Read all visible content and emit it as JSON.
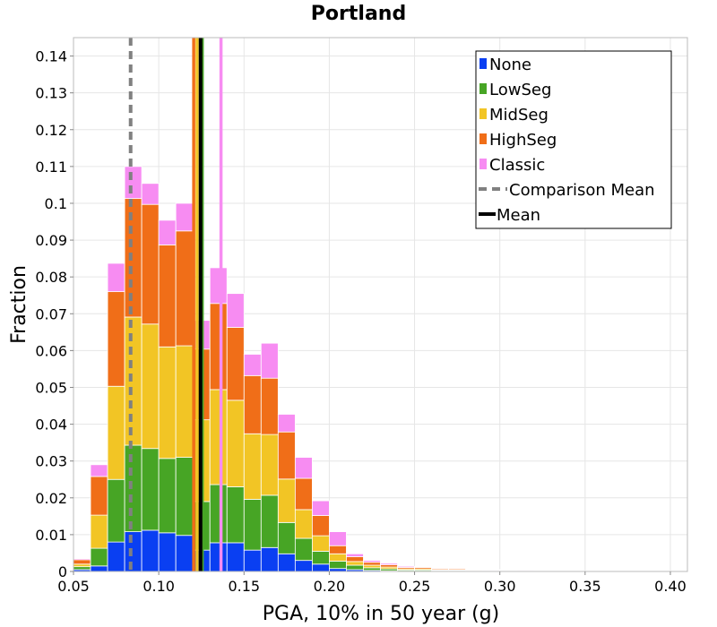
{
  "chart_data": {
    "type": "bar",
    "title": "Portland",
    "xlabel": "PGA, 10% in 50 year (g)",
    "ylabel": "Fraction",
    "xlim": [
      0.05,
      0.41
    ],
    "ylim": [
      0,
      0.145
    ],
    "xticks": [
      "0.05",
      "0.10",
      "0.15",
      "0.20",
      "0.25",
      "0.30",
      "0.35",
      "0.40"
    ],
    "yticks": [
      "0",
      "0.01",
      "0.02",
      "0.03",
      "0.04",
      "0.05",
      "0.06",
      "0.07",
      "0.08",
      "0.09",
      "0.1",
      "0.11",
      "0.12",
      "0.13",
      "0.14"
    ],
    "grid": true,
    "stacked": true,
    "legend_position": "top-right",
    "bin_width": 0.01,
    "x": [
      0.055,
      0.065,
      0.075,
      0.085,
      0.095,
      0.105,
      0.115,
      0.125,
      0.135,
      0.145,
      0.155,
      0.165,
      0.175,
      0.185,
      0.195,
      0.205,
      0.215,
      0.225,
      0.235,
      0.245,
      0.255,
      0.265,
      0.275,
      0.285,
      0.295,
      0.305,
      0.315,
      0.325,
      0.335,
      0.345,
      0.355,
      0.365,
      0.375,
      0.385,
      0.395
    ],
    "series": [
      {
        "name": "None",
        "color": "#0a3ff2",
        "values": [
          0.0005,
          0.0015,
          0.008,
          0.0108,
          0.0112,
          0.0105,
          0.0098,
          0.0058,
          0.0078,
          0.0078,
          0.0058,
          0.0065,
          0.0048,
          0.003,
          0.002,
          0.0008,
          0.0005,
          0.0003,
          0.0002,
          0.0001,
          0.0001,
          0.0001,
          0.0001,
          0,
          0,
          0,
          0,
          0,
          0,
          0,
          0,
          0,
          0,
          0,
          0
        ]
      },
      {
        "name": "LowSeg",
        "color": "#47a525",
        "values": [
          0.0008,
          0.0048,
          0.017,
          0.0235,
          0.0222,
          0.0202,
          0.0212,
          0.0132,
          0.0158,
          0.0152,
          0.0138,
          0.0142,
          0.0085,
          0.006,
          0.0035,
          0.002,
          0.0012,
          0.0007,
          0.0005,
          0.0003,
          0.0003,
          0.0002,
          0.0002,
          0.0001,
          0.0001,
          0,
          0,
          0,
          0,
          0,
          0,
          0,
          0,
          0,
          0
        ]
      },
      {
        "name": "MidSeg",
        "color": "#f2c525",
        "values": [
          0.0007,
          0.009,
          0.0253,
          0.0348,
          0.0338,
          0.0303,
          0.0303,
          0.0222,
          0.0258,
          0.0235,
          0.0178,
          0.0165,
          0.0118,
          0.0078,
          0.0042,
          0.002,
          0.001,
          0.0007,
          0.0005,
          0.0003,
          0.0003,
          0.0002,
          0.0002,
          0.0001,
          0.0001,
          0.0001,
          0.0001,
          0,
          0,
          0,
          0,
          0,
          0,
          0,
          0
        ]
      },
      {
        "name": "HighSeg",
        "color": "#f06e18",
        "values": [
          0.0012,
          0.0105,
          0.0257,
          0.0322,
          0.0325,
          0.0277,
          0.0312,
          0.0192,
          0.0234,
          0.0198,
          0.0158,
          0.0153,
          0.0128,
          0.0085,
          0.0055,
          0.0022,
          0.0013,
          0.0008,
          0.0006,
          0.0004,
          0.0004,
          0.0003,
          0.0003,
          0.0002,
          0.0001,
          0.0001,
          0.0001,
          0.0001,
          0,
          0,
          0,
          0,
          0,
          0,
          0
        ]
      },
      {
        "name": "Classic",
        "color": "#f78cf2",
        "values": [
          0.0003,
          0.0032,
          0.0077,
          0.0087,
          0.0057,
          0.0067,
          0.0075,
          0.0078,
          0.0097,
          0.0092,
          0.0058,
          0.0095,
          0.0048,
          0.0057,
          0.004,
          0.0038,
          0.0008,
          0.0005,
          0.0004,
          0.0003,
          0.0002,
          0.0002,
          0.0002,
          0.0002,
          0.0002,
          0.0001,
          0.0002,
          0.0001,
          0.0001,
          0.0001,
          0.0001,
          0.0001,
          0.0001,
          0.0001,
          0.0001
        ]
      }
    ],
    "vertical_lines": [
      {
        "name": "Comparison Mean",
        "x": 0.0835,
        "color": "#808080",
        "style": "dashed"
      },
      {
        "name": "Mean",
        "x": 0.1245,
        "color": "#000000",
        "style": "solid"
      },
      {
        "name": "",
        "x": 0.1205,
        "color": "#f06e18",
        "style": "solid"
      },
      {
        "name": "",
        "x": 0.1225,
        "color": "#f2c525",
        "style": "solid"
      },
      {
        "name": "",
        "x": 0.1245,
        "color": "#0a3ff2",
        "style": "solid"
      },
      {
        "name": "",
        "x": 0.1255,
        "color": "#47a525",
        "style": "solid"
      },
      {
        "name": "",
        "x": 0.1365,
        "color": "#f78cf2",
        "style": "solid"
      }
    ],
    "legend": [
      "None",
      "LowSeg",
      "MidSeg",
      "HighSeg",
      "Classic",
      "Comparison Mean",
      "Mean"
    ]
  }
}
